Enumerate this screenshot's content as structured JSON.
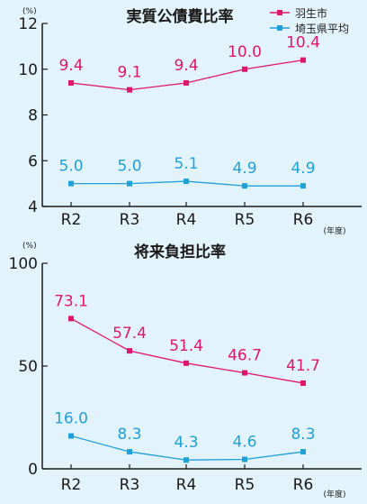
{
  "colors": {
    "background": "#e3f3fb",
    "hanyu": "#e0156e",
    "saitama": "#1ea0d8",
    "axis": "#1a1a1a"
  },
  "legend": {
    "series1": "羽生市",
    "series2": "埼玉県平均"
  },
  "chart_data": [
    {
      "type": "line",
      "title": "実質公債費比率",
      "y_unit": "(%)",
      "x_unit": "(年度)",
      "categories": [
        "R2",
        "R3",
        "R4",
        "R5",
        "R6"
      ],
      "ylim": [
        4,
        12
      ],
      "yticks": [
        4,
        6,
        8,
        10,
        12
      ],
      "grid": false,
      "series": [
        {
          "name": "羽生市",
          "values": [
            9.4,
            9.1,
            9.4,
            10.0,
            10.4
          ],
          "labels": [
            "9.4",
            "9.1",
            "9.4",
            "10.0",
            "10.4"
          ]
        },
        {
          "name": "埼玉県平均",
          "values": [
            5.0,
            5.0,
            5.1,
            4.9,
            4.9
          ],
          "labels": [
            "5.0",
            "5.0",
            "5.1",
            "4.9",
            "4.9"
          ]
        }
      ]
    },
    {
      "type": "line",
      "title": "将来負担比率",
      "y_unit": "(%)",
      "x_unit": "(年度)",
      "categories": [
        "R2",
        "R3",
        "R4",
        "R5",
        "R6"
      ],
      "ylim": [
        0,
        100
      ],
      "yticks": [
        0,
        50,
        100
      ],
      "grid": false,
      "series": [
        {
          "name": "羽生市",
          "values": [
            73.1,
            57.4,
            51.4,
            46.7,
            41.7
          ],
          "labels": [
            "73.1",
            "57.4",
            "51.4",
            "46.7",
            "41.7"
          ]
        },
        {
          "name": "埼玉県平均",
          "values": [
            16.0,
            8.3,
            4.3,
            4.6,
            8.3
          ],
          "labels": [
            "16.0",
            "8.3",
            "4.3",
            "4.6",
            "8.3"
          ]
        }
      ]
    }
  ]
}
